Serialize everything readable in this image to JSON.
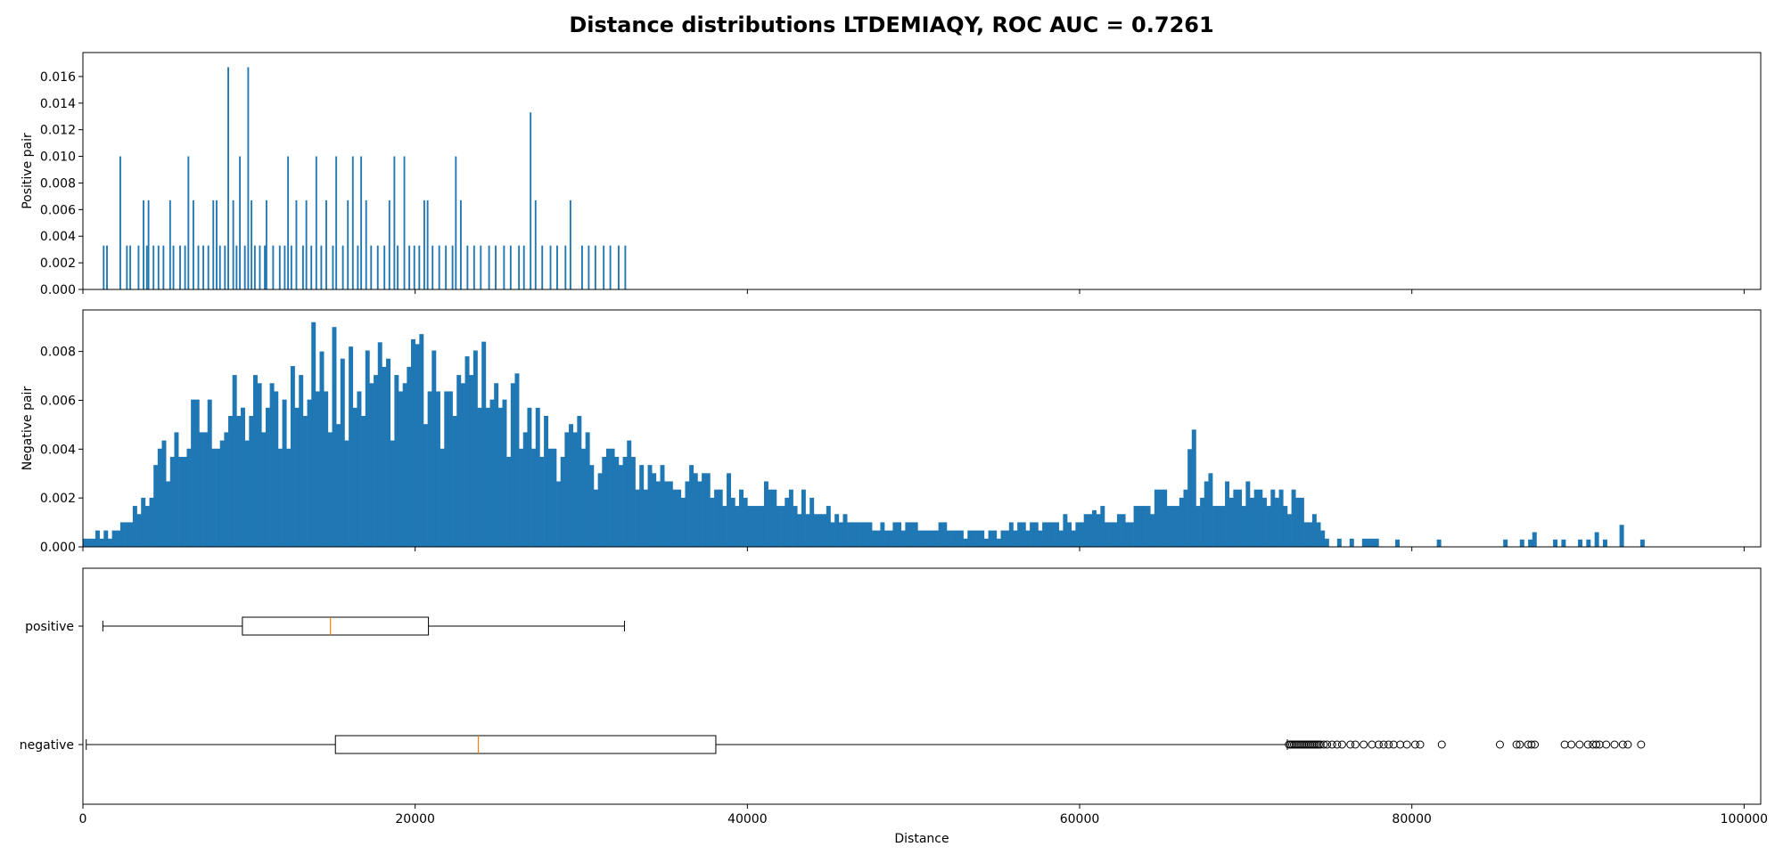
{
  "figure": {
    "title": "Distance distributions LTDEMIAQY, ROC AUC = 0.7261",
    "bar_color": "#1f77b4",
    "median_color": "#ff7f0e"
  },
  "chart_data": [
    {
      "type": "bar",
      "panel": "positive-histogram",
      "ylabel": "Positive pair",
      "xlim": [
        0,
        101000
      ],
      "ylim": [
        0,
        0.0178
      ],
      "yticks": [
        0,
        0.002,
        0.004,
        0.006,
        0.008,
        0.01,
        0.012,
        0.014,
        0.016
      ],
      "ytick_labels": [
        "0.000",
        "0.002",
        "0.004",
        "0.006",
        "0.008",
        "0.010",
        "0.012",
        "0.014",
        "0.016"
      ],
      "xticks": [
        0,
        20000,
        40000,
        60000,
        80000,
        100000
      ],
      "bin_width": 100,
      "bins": [
        [
          1200,
          0.0033
        ],
        [
          1400,
          0.0033
        ],
        [
          2200,
          0.01
        ],
        [
          2600,
          0.0033
        ],
        [
          2800,
          0.0033
        ],
        [
          3300,
          0.0033
        ],
        [
          3600,
          0.0067
        ],
        [
          3800,
          0.0033
        ],
        [
          3900,
          0.0067
        ],
        [
          4200,
          0.0033
        ],
        [
          4500,
          0.0033
        ],
        [
          4800,
          0.0033
        ],
        [
          5200,
          0.0067
        ],
        [
          5400,
          0.0033
        ],
        [
          5800,
          0.0033
        ],
        [
          6100,
          0.0033
        ],
        [
          6300,
          0.01
        ],
        [
          6600,
          0.0067
        ],
        [
          6900,
          0.0033
        ],
        [
          7200,
          0.0033
        ],
        [
          7500,
          0.0033
        ],
        [
          7800,
          0.0067
        ],
        [
          8000,
          0.0067
        ],
        [
          8200,
          0.0033
        ],
        [
          8500,
          0.0033
        ],
        [
          8700,
          0.0167
        ],
        [
          9000,
          0.0067
        ],
        [
          9200,
          0.0033
        ],
        [
          9400,
          0.01
        ],
        [
          9700,
          0.0033
        ],
        [
          9900,
          0.0167
        ],
        [
          10100,
          0.0067
        ],
        [
          10300,
          0.0033
        ],
        [
          10600,
          0.0033
        ],
        [
          10900,
          0.0033
        ],
        [
          11000,
          0.0067
        ],
        [
          11400,
          0.0033
        ],
        [
          11800,
          0.0033
        ],
        [
          12100,
          0.0033
        ],
        [
          12300,
          0.01
        ],
        [
          12500,
          0.0033
        ],
        [
          12800,
          0.0067
        ],
        [
          13200,
          0.0033
        ],
        [
          13400,
          0.0067
        ],
        [
          13700,
          0.0033
        ],
        [
          14000,
          0.01
        ],
        [
          14300,
          0.0033
        ],
        [
          14600,
          0.0067
        ],
        [
          15000,
          0.0033
        ],
        [
          15200,
          0.01
        ],
        [
          15600,
          0.0033
        ],
        [
          15900,
          0.0067
        ],
        [
          16200,
          0.01
        ],
        [
          16500,
          0.0033
        ],
        [
          16700,
          0.01
        ],
        [
          17000,
          0.0067
        ],
        [
          17300,
          0.0033
        ],
        [
          17700,
          0.0033
        ],
        [
          18100,
          0.0033
        ],
        [
          18400,
          0.0067
        ],
        [
          18700,
          0.01
        ],
        [
          18900,
          0.0033
        ],
        [
          19300,
          0.01
        ],
        [
          19600,
          0.0033
        ],
        [
          19900,
          0.0033
        ],
        [
          20200,
          0.0033
        ],
        [
          20500,
          0.0067
        ],
        [
          20700,
          0.0067
        ],
        [
          21000,
          0.0033
        ],
        [
          21400,
          0.0033
        ],
        [
          21800,
          0.0033
        ],
        [
          22200,
          0.0033
        ],
        [
          22400,
          0.01
        ],
        [
          22700,
          0.0067
        ],
        [
          23100,
          0.0033
        ],
        [
          23500,
          0.0033
        ],
        [
          23900,
          0.0033
        ],
        [
          24400,
          0.0033
        ],
        [
          24800,
          0.0033
        ],
        [
          25300,
          0.0033
        ],
        [
          25700,
          0.0033
        ],
        [
          26200,
          0.0033
        ],
        [
          26500,
          0.0033
        ],
        [
          26900,
          0.0133
        ],
        [
          27200,
          0.0067
        ],
        [
          27600,
          0.0033
        ],
        [
          28100,
          0.0033
        ],
        [
          28500,
          0.0033
        ],
        [
          29000,
          0.0033
        ],
        [
          29300,
          0.0067
        ],
        [
          30000,
          0.0033
        ],
        [
          30400,
          0.0033
        ],
        [
          30800,
          0.0033
        ],
        [
          31300,
          0.0033
        ],
        [
          31700,
          0.0033
        ],
        [
          32200,
          0.0033
        ],
        [
          32600,
          0.0033
        ]
      ]
    },
    {
      "type": "bar",
      "panel": "negative-histogram",
      "ylabel": "Negative pair",
      "xlim": [
        0,
        101000
      ],
      "ylim": [
        0,
        0.0097
      ],
      "yticks": [
        0,
        0.002,
        0.004,
        0.006,
        0.008
      ],
      "ytick_labels": [
        "0.000",
        "0.002",
        "0.004",
        "0.006",
        "0.008"
      ],
      "xticks": [
        0,
        20000,
        40000,
        60000,
        80000,
        100000
      ],
      "bin_width": 250,
      "control_points": [
        [
          200,
          0.0003
        ],
        [
          1500,
          0.0005
        ],
        [
          2500,
          0.0008
        ],
        [
          3500,
          0.0018
        ],
        [
          4500,
          0.003
        ],
        [
          5500,
          0.004
        ],
        [
          6500,
          0.0045
        ],
        [
          7500,
          0.005
        ],
        [
          8500,
          0.0052
        ],
        [
          9500,
          0.0054
        ],
        [
          10500,
          0.0056
        ],
        [
          11500,
          0.0055
        ],
        [
          12500,
          0.0058
        ],
        [
          13500,
          0.0065
        ],
        [
          14500,
          0.0068
        ],
        [
          15500,
          0.007
        ],
        [
          16500,
          0.0066
        ],
        [
          17500,
          0.0068
        ],
        [
          18500,
          0.0066
        ],
        [
          19500,
          0.0068
        ],
        [
          20500,
          0.0065
        ],
        [
          21500,
          0.006
        ],
        [
          22500,
          0.0058
        ],
        [
          23500,
          0.0059
        ],
        [
          24500,
          0.0055
        ],
        [
          25500,
          0.0052
        ],
        [
          26500,
          0.0048
        ],
        [
          27500,
          0.0045
        ],
        [
          28500,
          0.0042
        ],
        [
          29500,
          0.004
        ],
        [
          30500,
          0.0038
        ],
        [
          31500,
          0.0036
        ],
        [
          32500,
          0.0033
        ],
        [
          33500,
          0.0032
        ],
        [
          34500,
          0.003
        ],
        [
          35500,
          0.0028
        ],
        [
          36500,
          0.0026
        ],
        [
          37500,
          0.0025
        ],
        [
          38500,
          0.0024
        ],
        [
          39500,
          0.0023
        ],
        [
          40500,
          0.0022
        ],
        [
          41500,
          0.0021
        ],
        [
          42500,
          0.0019
        ],
        [
          43500,
          0.0017
        ],
        [
          44500,
          0.0014
        ],
        [
          45500,
          0.0012
        ],
        [
          46500,
          0.001
        ],
        [
          47500,
          0.001
        ],
        [
          48500,
          0.0009
        ],
        [
          49500,
          0.0009
        ],
        [
          50500,
          0.0008
        ],
        [
          51500,
          0.0007
        ],
        [
          52500,
          0.0006
        ],
        [
          53500,
          0.0006
        ],
        [
          54500,
          0.0006
        ],
        [
          55500,
          0.0006
        ],
        [
          56500,
          0.0007
        ],
        [
          57500,
          0.0008
        ],
        [
          58500,
          0.0009
        ],
        [
          59500,
          0.001
        ],
        [
          60500,
          0.0011
        ],
        [
          61500,
          0.0012
        ],
        [
          62500,
          0.0011
        ],
        [
          63500,
          0.0013
        ],
        [
          64500,
          0.0018
        ],
        [
          65500,
          0.0022
        ],
        [
          66500,
          0.0026
        ],
        [
          67500,
          0.0024
        ],
        [
          68500,
          0.0022
        ],
        [
          69500,
          0.0021
        ],
        [
          70500,
          0.0023
        ],
        [
          71500,
          0.0021
        ],
        [
          72500,
          0.0019
        ],
        [
          73500,
          0.0015
        ],
        [
          74500,
          0.0008
        ],
        [
          75000,
          0.0004
        ],
        [
          76500,
          0.0003
        ],
        [
          78000,
          0.0003
        ]
      ],
      "sparse_bins": [
        [
          79000,
          0.0003
        ],
        [
          81500,
          0.0003
        ],
        [
          85500,
          0.0003
        ],
        [
          86700,
          0.0003
        ],
        [
          87000,
          0.0003
        ],
        [
          87300,
          0.0006
        ],
        [
          88600,
          0.0003
        ],
        [
          89100,
          0.0003
        ],
        [
          90000,
          0.0003
        ],
        [
          90700,
          0.0003
        ],
        [
          91100,
          0.0006
        ],
        [
          91500,
          0.0003
        ],
        [
          92600,
          0.0009
        ],
        [
          93800,
          0.0003
        ]
      ],
      "peaks": [
        [
          13800,
          0.0092
        ],
        [
          15000,
          0.009
        ],
        [
          14300,
          0.008
        ],
        [
          16000,
          0.0082
        ],
        [
          19800,
          0.0085
        ],
        [
          20200,
          0.0083
        ],
        [
          24200,
          0.0084
        ],
        [
          12600,
          0.0074
        ],
        [
          23000,
          0.0078
        ],
        [
          26000,
          0.0071
        ],
        [
          9500,
          0.0057
        ],
        [
          66900,
          0.0048
        ],
        [
          60800,
          0.0015
        ],
        [
          66500,
          0.004
        ]
      ]
    },
    {
      "type": "boxplot",
      "panel": "boxplot",
      "xlabel": "Distance",
      "xlim": [
        0,
        101000
      ],
      "xticks": [
        0,
        20000,
        40000,
        60000,
        80000,
        100000
      ],
      "xtick_labels": [
        "0",
        "20000",
        "40000",
        "60000",
        "80000",
        "100000"
      ],
      "boxes": [
        {
          "label": "positive",
          "whislo": 1200,
          "q1": 9600,
          "med": 14900,
          "q3": 20800,
          "whishi": 32600,
          "fliers": []
        },
        {
          "label": "negative",
          "whislo": 200,
          "q1": 15200,
          "med": 23800,
          "q3": 38100,
          "whishi": 72500,
          "fliers": [
            72600,
            72700,
            72800,
            72900,
            73000,
            73100,
            73200,
            73300,
            73400,
            73500,
            73600,
            73700,
            73800,
            73900,
            74000,
            74100,
            74200,
            74300,
            74400,
            74500,
            74700,
            74900,
            75200,
            75500,
            75800,
            76300,
            76600,
            77100,
            77600,
            78000,
            78300,
            78600,
            78900,
            79300,
            79700,
            80200,
            80500,
            81800,
            85300,
            86300,
            86500,
            87000,
            87200,
            87400,
            89200,
            89600,
            90100,
            90600,
            90900,
            91100,
            91300,
            91700,
            92200,
            92700,
            93000,
            93800
          ]
        }
      ]
    }
  ]
}
